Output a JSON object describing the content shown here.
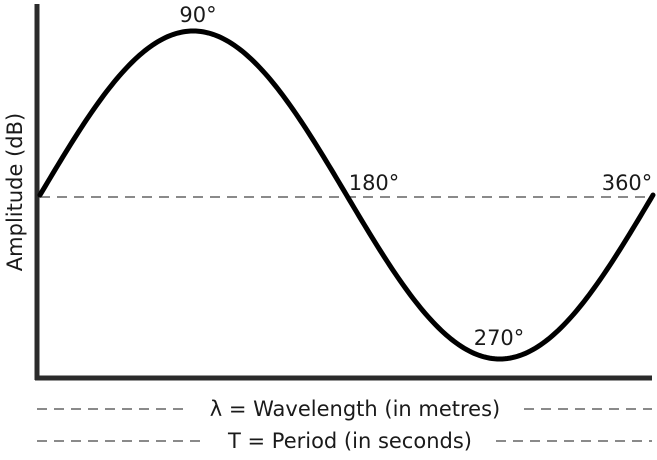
{
  "diagram": {
    "y_axis_label": "Amplitude (dB)",
    "angles": {
      "peak": "90°",
      "mid": "180°",
      "trough": "270°",
      "end": "360°"
    },
    "legend": {
      "wavelength": "λ = Wavelength (in metres)",
      "period": "T = Period (in seconds)"
    },
    "colors": {
      "wave": "#000000",
      "axis": "#2b2b2b",
      "dashed": "#8a8a8a"
    }
  }
}
